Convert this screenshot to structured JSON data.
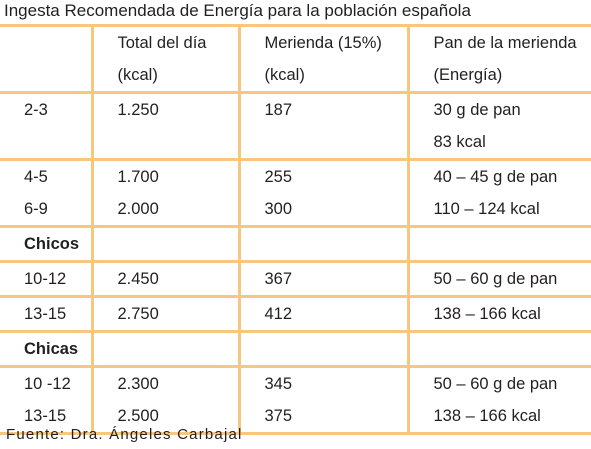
{
  "title": "Ingesta Recomendada de Energía para la población española",
  "header": {
    "col1": "",
    "col2": [
      "Total del día",
      "(kcal)"
    ],
    "col3": [
      "Merienda (15%)",
      "(kcal)"
    ],
    "col4": [
      "Pan de la merienda",
      "(Energía)"
    ]
  },
  "rows": {
    "r_2_3": {
      "age": "2-3",
      "total": "1.250",
      "merienda": "187",
      "pan": [
        "30 g de pan",
        "83 kcal"
      ]
    },
    "r_4_5": {
      "age": "4-5",
      "total": "1.700",
      "merienda": "255"
    },
    "r_6_9": {
      "age": "6-9",
      "total": "2.000",
      "merienda": "300"
    },
    "pan_4_9": [
      "40 – 45 g de pan",
      "110 – 124 kcal"
    ],
    "chicos": "Chicos",
    "chicos_10_12": {
      "age": "10-12",
      "total": "2.450",
      "merienda": "367",
      "pan": "50 – 60 g de pan"
    },
    "chicos_13_15": {
      "age": "13-15",
      "total": "2.750",
      "merienda": "412",
      "pan": "138 – 166 kcal"
    },
    "chicas": "Chicas",
    "chicas_10_12": {
      "age": "10 -12",
      "total": "2.300",
      "merienda": "345"
    },
    "chicas_13_15": {
      "age": "13-15",
      "total": "2.500",
      "merienda": "375"
    },
    "pan_chicas": [
      "50 – 60 g de pan",
      "138 – 166 kcal"
    ]
  },
  "footer": "Fuente: Dra. Ángeles Carbajal",
  "colors": {
    "grid": "#f7c77f",
    "text": "#231f20"
  }
}
